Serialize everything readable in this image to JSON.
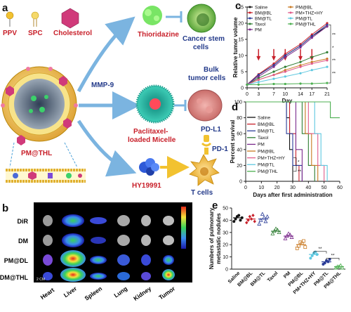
{
  "panels": {
    "a": "a",
    "b": "b",
    "c": "c",
    "d": "d",
    "e": "e"
  },
  "schematic": {
    "ppv": "PPV",
    "spc": "SPC",
    "cholesterol": "Cholesterol",
    "pm_thl": "PM@THL",
    "mmp9": "MMP-9",
    "thioridazine": "Thioridazine",
    "paclitaxel_line1": "Paclitaxel-",
    "paclitaxel_line2": "loaded Micelle",
    "hy19991": "HY19991",
    "cancer_stem_line1": "Cancer stem",
    "cancer_stem_line2": "cells",
    "bulk_line1": "Bulk",
    "bulk_line2": "tumor cells",
    "pdl1": "PD-L1",
    "pd1": "PD-1",
    "tcells": "T cells",
    "colors": {
      "red": "#c8202a",
      "navy": "#233a8a",
      "arrow": "#7bb4e0"
    }
  },
  "imaging": {
    "rows": [
      "DiR",
      "DM",
      "PM@DL",
      "DM@THL"
    ],
    "columns": [
      "Heart",
      "Liver",
      "Spleen",
      "Lung",
      "Kidney",
      "Tumor"
    ],
    "scale": "2 CM"
  },
  "chart_data": [
    {
      "type": "line",
      "panel": "c",
      "xlabel": "Day",
      "ylabel": "Relative tumor volume",
      "x": [
        0,
        3,
        7,
        10,
        14,
        17,
        21
      ],
      "xlim": [
        0,
        21
      ],
      "ylim": [
        0,
        25
      ],
      "xticks": [
        0,
        3,
        7,
        10,
        14,
        17,
        21
      ],
      "yticks": [
        0,
        5,
        10,
        15,
        20,
        25
      ],
      "legend_placement": "top",
      "series": [
        {
          "name": "Saline",
          "color": "#111111",
          "values": [
            1,
            4,
            7,
            10,
            13,
            16,
            19
          ]
        },
        {
          "name": "BM@BL",
          "color": "#c8202a",
          "values": [
            1,
            4.2,
            7.5,
            10.5,
            13.5,
            16.5,
            20
          ]
        },
        {
          "name": "BM@TL",
          "color": "#2c3e99",
          "values": [
            1,
            4,
            7,
            10,
            13,
            16,
            19.5
          ]
        },
        {
          "name": "Taxol",
          "color": "#2e7d32",
          "values": [
            1,
            3,
            5,
            6.5,
            8,
            9.5,
            11
          ]
        },
        {
          "name": "PM",
          "color": "#7b2a8c",
          "values": [
            1,
            3.5,
            6.5,
            9.5,
            12.5,
            15.5,
            19
          ]
        },
        {
          "name": "PM@BL",
          "color": "#c87820",
          "values": [
            1,
            2.5,
            4,
            5.5,
            7,
            8,
            9
          ]
        },
        {
          "name": "PM+THZ+HY",
          "color": "#e05b8a",
          "values": [
            1,
            2.5,
            4,
            5,
            6.5,
            7.5,
            8.5
          ]
        },
        {
          "name": "PM@TL",
          "color": "#5fc8e0",
          "values": [
            1,
            1.8,
            2.8,
            3.5,
            4.5,
            5.5,
            6.5
          ]
        },
        {
          "name": "PM@THL",
          "color": "#4caf50",
          "values": [
            1,
            1,
            1.2,
            1.2,
            1.3,
            1.3,
            1.5
          ]
        }
      ],
      "annotations": [
        "**",
        "*",
        "**",
        "**"
      ]
    },
    {
      "type": "line",
      "panel": "d",
      "step": true,
      "xlabel": "Days after first administration",
      "ylabel": "Percent survival",
      "xlim": [
        0,
        60
      ],
      "ylim": [
        0,
        100
      ],
      "xticks": [
        0,
        10,
        20,
        30,
        40,
        50,
        60
      ],
      "yticks": [
        0,
        20,
        40,
        60,
        80,
        100
      ],
      "legend_placement": "left",
      "series": [
        {
          "name": "Saline",
          "color": "#111111",
          "points": [
            [
              0,
              100
            ],
            [
              26,
              100
            ],
            [
              26,
              80
            ],
            [
              28,
              80
            ],
            [
              28,
              40
            ],
            [
              30,
              40
            ],
            [
              30,
              0
            ]
          ]
        },
        {
          "name": "BM@BL",
          "color": "#c8202a",
          "points": [
            [
              0,
              100
            ],
            [
              28,
              100
            ],
            [
              28,
              60
            ],
            [
              32,
              60
            ],
            [
              32,
              20
            ],
            [
              34,
              20
            ],
            [
              34,
              0
            ]
          ]
        },
        {
          "name": "BM@TL",
          "color": "#2c3e99",
          "points": [
            [
              0,
              100
            ],
            [
              26,
              100
            ],
            [
              26,
              60
            ],
            [
              30,
              60
            ],
            [
              30,
              20
            ],
            [
              36,
              20
            ],
            [
              36,
              0
            ]
          ]
        },
        {
          "name": "Taxol",
          "color": "#2e7d32",
          "points": [
            [
              0,
              100
            ],
            [
              36,
              100
            ],
            [
              36,
              60
            ],
            [
              40,
              60
            ],
            [
              40,
              20
            ],
            [
              44,
              20
            ],
            [
              44,
              0
            ]
          ]
        },
        {
          "name": "PM",
          "color": "#7b2a8c",
          "points": [
            [
              0,
              100
            ],
            [
              32,
              100
            ],
            [
              32,
              40
            ],
            [
              36,
              40
            ],
            [
              36,
              0
            ]
          ]
        },
        {
          "name": "PM@BL",
          "color": "#c87820",
          "points": [
            [
              0,
              100
            ],
            [
              38,
              100
            ],
            [
              38,
              60
            ],
            [
              42,
              60
            ],
            [
              42,
              20
            ],
            [
              46,
              20
            ],
            [
              46,
              0
            ]
          ]
        },
        {
          "name": "PM+THZ+HY",
          "color": "#e05b8a",
          "points": [
            [
              0,
              100
            ],
            [
              40,
              100
            ],
            [
              40,
              60
            ],
            [
              46,
              60
            ],
            [
              46,
              20
            ],
            [
              50,
              20
            ],
            [
              50,
              0
            ]
          ]
        },
        {
          "name": "PM@TL",
          "color": "#5fc8e0",
          "points": [
            [
              0,
              100
            ],
            [
              44,
              100
            ],
            [
              44,
              60
            ],
            [
              48,
              60
            ],
            [
              48,
              20
            ],
            [
              52,
              20
            ],
            [
              52,
              0
            ]
          ]
        },
        {
          "name": "PM@THL",
          "color": "#4caf50",
          "points": [
            [
              0,
              100
            ],
            [
              54,
              100
            ],
            [
              54,
              80
            ],
            [
              60,
              80
            ]
          ]
        }
      ],
      "annotations": [
        "*",
        "**"
      ]
    },
    {
      "type": "scatter",
      "panel": "e",
      "ylabel": "Numbers of pulmonary metastatic nodules",
      "ylim": [
        0,
        50
      ],
      "yticks": [
        0,
        10,
        20,
        30,
        40,
        50
      ],
      "categories": [
        "Saline",
        "BM@BL",
        "BM@TL",
        "Taxol",
        "PM",
        "PM@BL",
        "PM+THZ+HY",
        "PM@TL",
        "PM@THL"
      ],
      "colors": [
        "#111111",
        "#c8202a",
        "#2c3e99",
        "#2e7d32",
        "#7b2a8c",
        "#c87820",
        "#5fc8e0",
        "#2c3e99",
        "#4caf50"
      ],
      "means": [
        42,
        41,
        41,
        31,
        27,
        20,
        12,
        6,
        2
      ],
      "points": [
        [
          39,
          41,
          43,
          44,
          40,
          42
        ],
        [
          38,
          40,
          43,
          41,
          44,
          39
        ],
        [
          37,
          40,
          45,
          42,
          39,
          43
        ],
        [
          29,
          31,
          33,
          32,
          30
        ],
        [
          25,
          27,
          29,
          28,
          26
        ],
        [
          17,
          19,
          22,
          21,
          23,
          18
        ],
        [
          9,
          11,
          13,
          14,
          12
        ],
        [
          4,
          5,
          7,
          6,
          8
        ],
        [
          1,
          2,
          2,
          3,
          1
        ]
      ],
      "annotations": [
        "**",
        "**"
      ]
    }
  ]
}
